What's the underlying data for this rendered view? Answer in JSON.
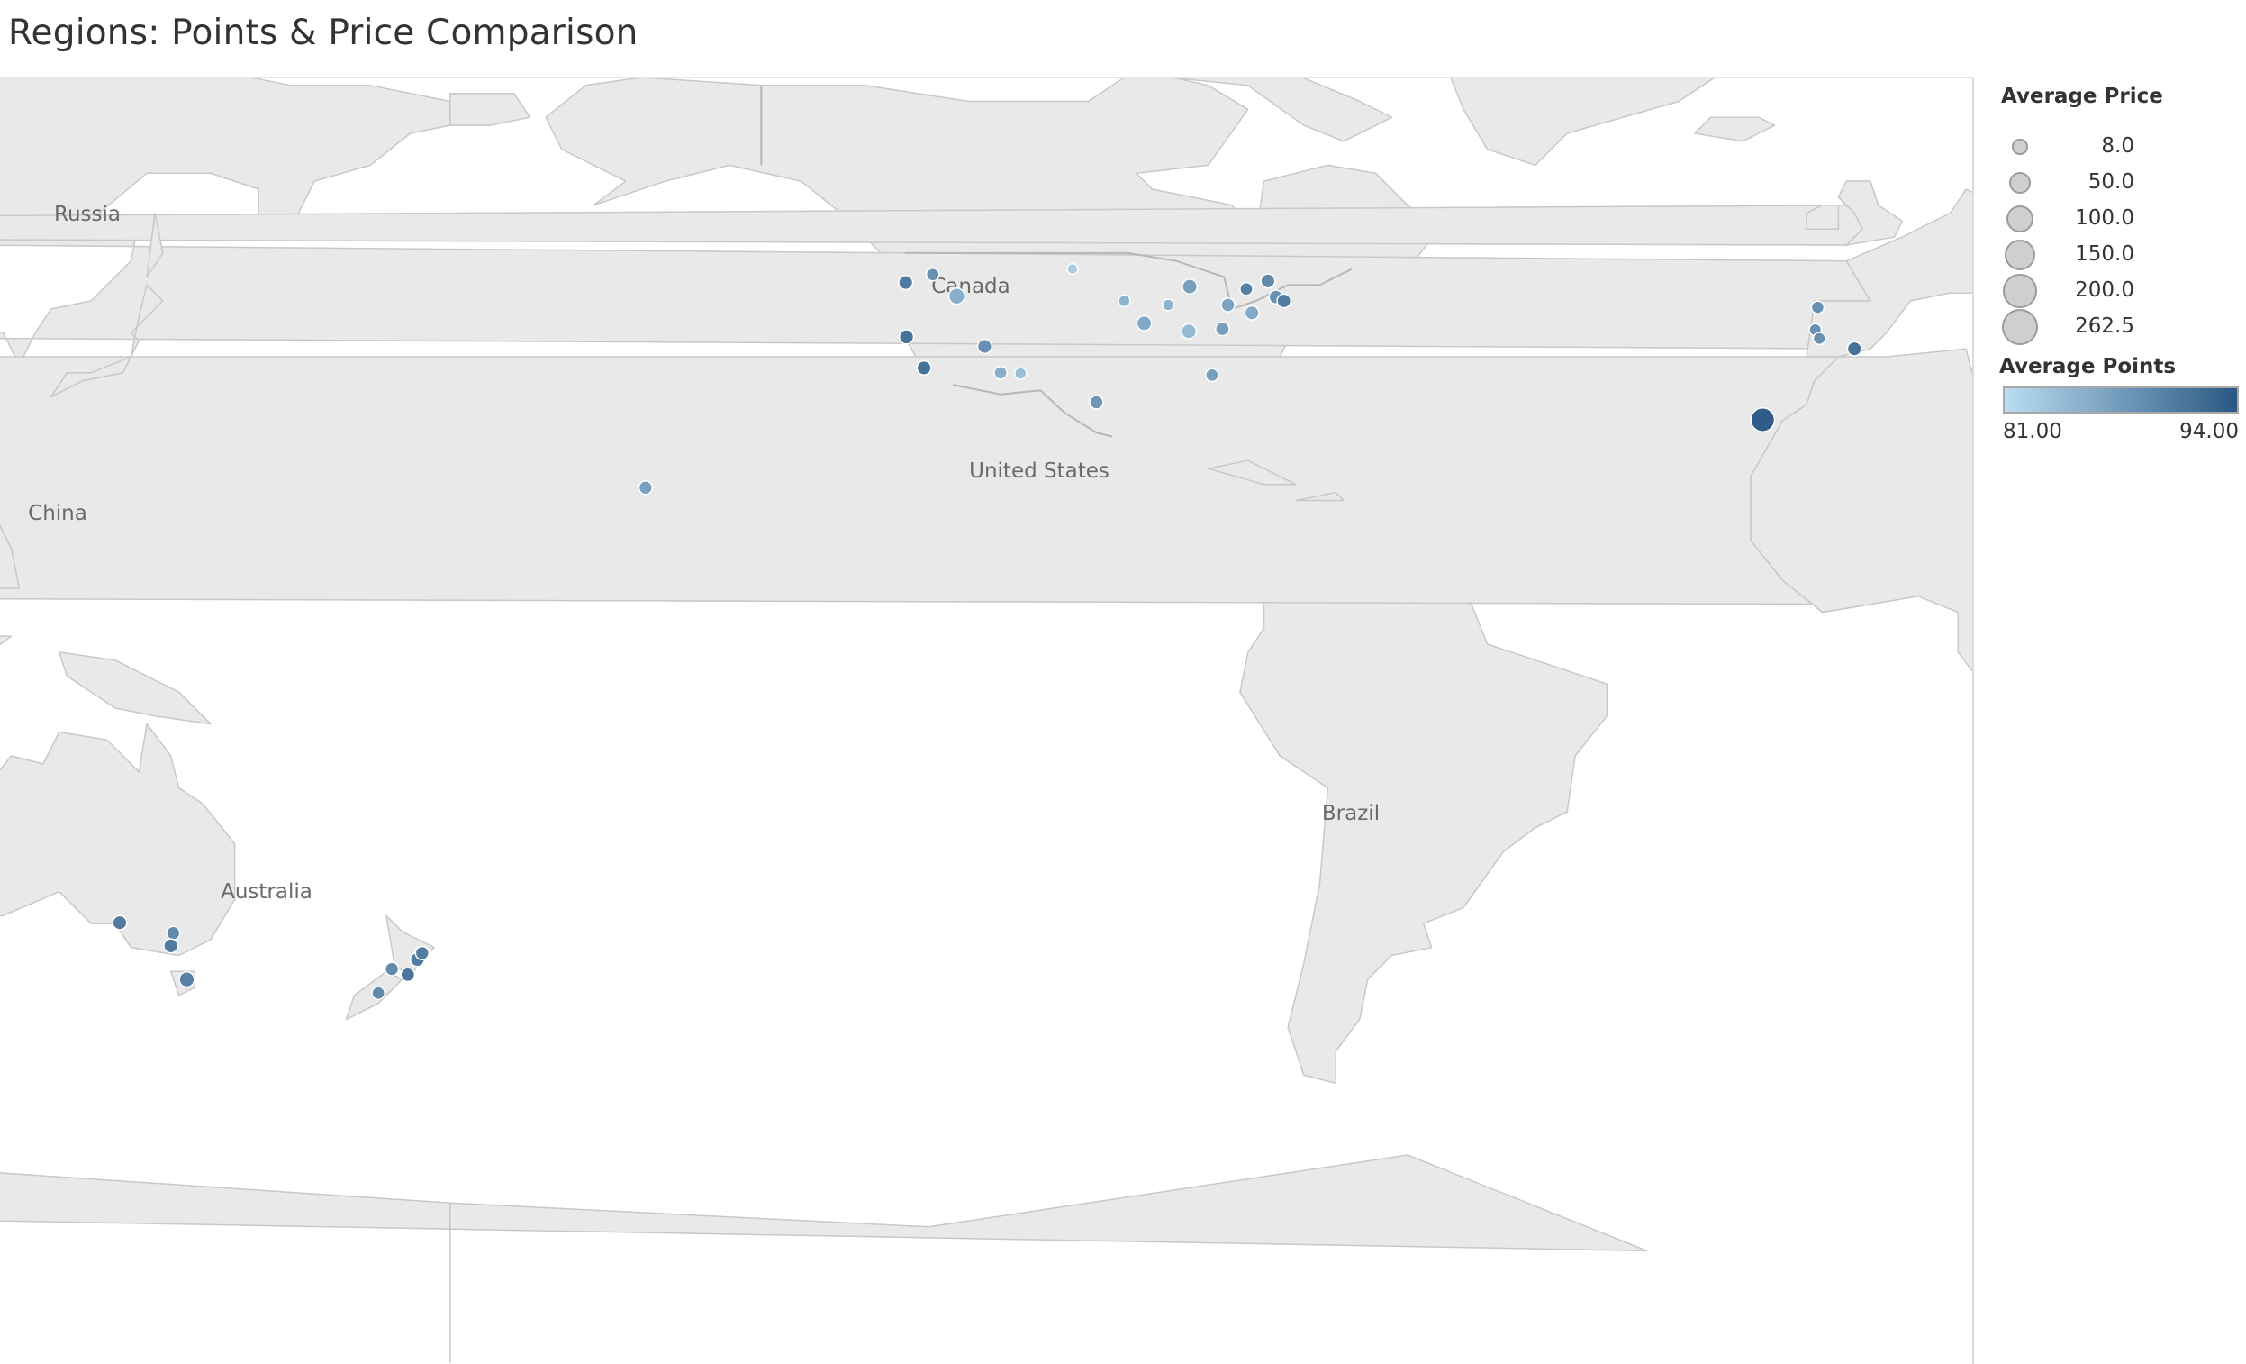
{
  "title": "Regions: Points & Price Comparison",
  "map": {
    "country_labels": [
      "Russia",
      "Canada",
      "China",
      "United States",
      "Brazil",
      "Australia"
    ],
    "land_color": "#e9e9e9",
    "ocean_color": "#ffffff",
    "border_color": "#c8c8c8"
  },
  "legend": {
    "size_title": "Average Price",
    "size_items": [
      "8.0",
      "50.0",
      "100.0",
      "150.0",
      "200.0",
      "262.5"
    ],
    "color_title": "Average Points",
    "color_min": "81.00",
    "color_max": "94.00",
    "color_low_hex": "#b9ddf1",
    "color_high_hex": "#2a5783"
  },
  "markers": [
    {
      "lon": -122.9,
      "lat": 45.3,
      "points": 90.5,
      "price": 45
    },
    {
      "lon": -122.8,
      "lat": 38.5,
      "points": 91.5,
      "price": 48
    },
    {
      "lon": -120.6,
      "lat": 34.6,
      "points": 91.5,
      "price": 45
    },
    {
      "lon": -119.5,
      "lat": 46.3,
      "points": 88.5,
      "price": 30
    },
    {
      "lon": -116.5,
      "lat": 43.6,
      "points": 85.5,
      "price": 75
    },
    {
      "lon": -113.0,
      "lat": 37.3,
      "points": 88.5,
      "price": 48
    },
    {
      "lon": -111.0,
      "lat": 34.0,
      "points": 85.5,
      "price": 30
    },
    {
      "lon": -108.5,
      "lat": 33.9,
      "points": 84.0,
      "price": 20
    },
    {
      "lon": -99.0,
      "lat": 30.3,
      "points": 88.0,
      "price": 35
    },
    {
      "lon": -102.0,
      "lat": 47.0,
      "points": 82.5,
      "price": 12
    },
    {
      "lon": -95.5,
      "lat": 43.0,
      "points": 85.0,
      "price": 18
    },
    {
      "lon": -93.0,
      "lat": 40.2,
      "points": 86.0,
      "price": 55
    },
    {
      "lon": -90.0,
      "lat": 42.5,
      "points": 85.0,
      "price": 18
    },
    {
      "lon": -87.3,
      "lat": 44.8,
      "points": 87.0,
      "price": 55
    },
    {
      "lon": -87.4,
      "lat": 39.2,
      "points": 84.5,
      "price": 55
    },
    {
      "lon": -84.5,
      "lat": 33.7,
      "points": 87.0,
      "price": 30
    },
    {
      "lon": -83.2,
      "lat": 39.5,
      "points": 87.0,
      "price": 40
    },
    {
      "lon": -82.5,
      "lat": 42.5,
      "points": 86.5,
      "price": 40
    },
    {
      "lon": -80.2,
      "lat": 44.5,
      "points": 90.0,
      "price": 30
    },
    {
      "lon": -79.5,
      "lat": 41.5,
      "points": 86.0,
      "price": 45
    },
    {
      "lon": -77.5,
      "lat": 45.5,
      "points": 89.0,
      "price": 45
    },
    {
      "lon": -76.5,
      "lat": 43.5,
      "points": 88.5,
      "price": 40
    },
    {
      "lon": -75.5,
      "lat": 43.0,
      "points": 90.5,
      "price": 40
    },
    {
      "lon": -155.5,
      "lat": 19.6,
      "points": 87.0,
      "price": 35
    },
    {
      "lon": -8.6,
      "lat": 42.2,
      "points": 88.5,
      "price": 28
    },
    {
      "lon": -8.9,
      "lat": 39.4,
      "points": 88.5,
      "price": 22
    },
    {
      "lon": -8.4,
      "lat": 38.3,
      "points": 88.5,
      "price": 22
    },
    {
      "lon": -4.0,
      "lat": 37.0,
      "points": 91.5,
      "price": 45
    },
    {
      "lon": -15.5,
      "lat": 28.1,
      "points": 93.5,
      "price": 262.5
    },
    {
      "lon": 1.6,
      "lat": 41.6,
      "points": 90.0,
      "price": 40
    },
    {
      "lon": 6.8,
      "lat": 44.2,
      "points": 91.5,
      "price": 80
    },
    {
      "lon": 7.8,
      "lat": 44.6,
      "points": 91.5,
      "price": 60
    },
    {
      "lon": 9.5,
      "lat": 42.5,
      "points": 90.0,
      "price": 65
    },
    {
      "lon": 10.5,
      "lat": 44.6,
      "points": 90.0,
      "price": 50
    },
    {
      "lon": 12.5,
      "lat": 45.2,
      "points": 90.5,
      "price": 40
    },
    {
      "lon": 13.2,
      "lat": 46.5,
      "points": 92.0,
      "price": 50
    },
    {
      "lon": 13.3,
      "lat": 45.7,
      "points": 92.0,
      "price": 45
    },
    {
      "lon": 19.5,
      "lat": -33.1,
      "points": 87.0,
      "price": 20
    },
    {
      "lon": 18.6,
      "lat": -33.9,
      "points": 87.5,
      "price": 20
    },
    {
      "lon": 116.0,
      "lat": -31.9,
      "points": 90.0,
      "price": 40
    },
    {
      "lon": 138.6,
      "lat": -34.9,
      "points": 90.5,
      "price": 45
    },
    {
      "lon": 145.3,
      "lat": -36.2,
      "points": 89.0,
      "price": 35
    },
    {
      "lon": 145.0,
      "lat": -37.8,
      "points": 90.5,
      "price": 45
    },
    {
      "lon": 147.0,
      "lat": -42.0,
      "points": 90.0,
      "price": 60
    },
    {
      "lon": 172.7,
      "lat": -40.7,
      "points": 89.0,
      "price": 35
    },
    {
      "lon": 174.7,
      "lat": -41.4,
      "points": 91.0,
      "price": 40
    },
    {
      "lon": 175.9,
      "lat": -39.5,
      "points": 90.5,
      "price": 45
    },
    {
      "lon": 176.5,
      "lat": -38.7,
      "points": 90.5,
      "price": 35
    },
    {
      "lon": 171.0,
      "lat": -43.7,
      "points": 89.0,
      "price": 30
    }
  ]
}
